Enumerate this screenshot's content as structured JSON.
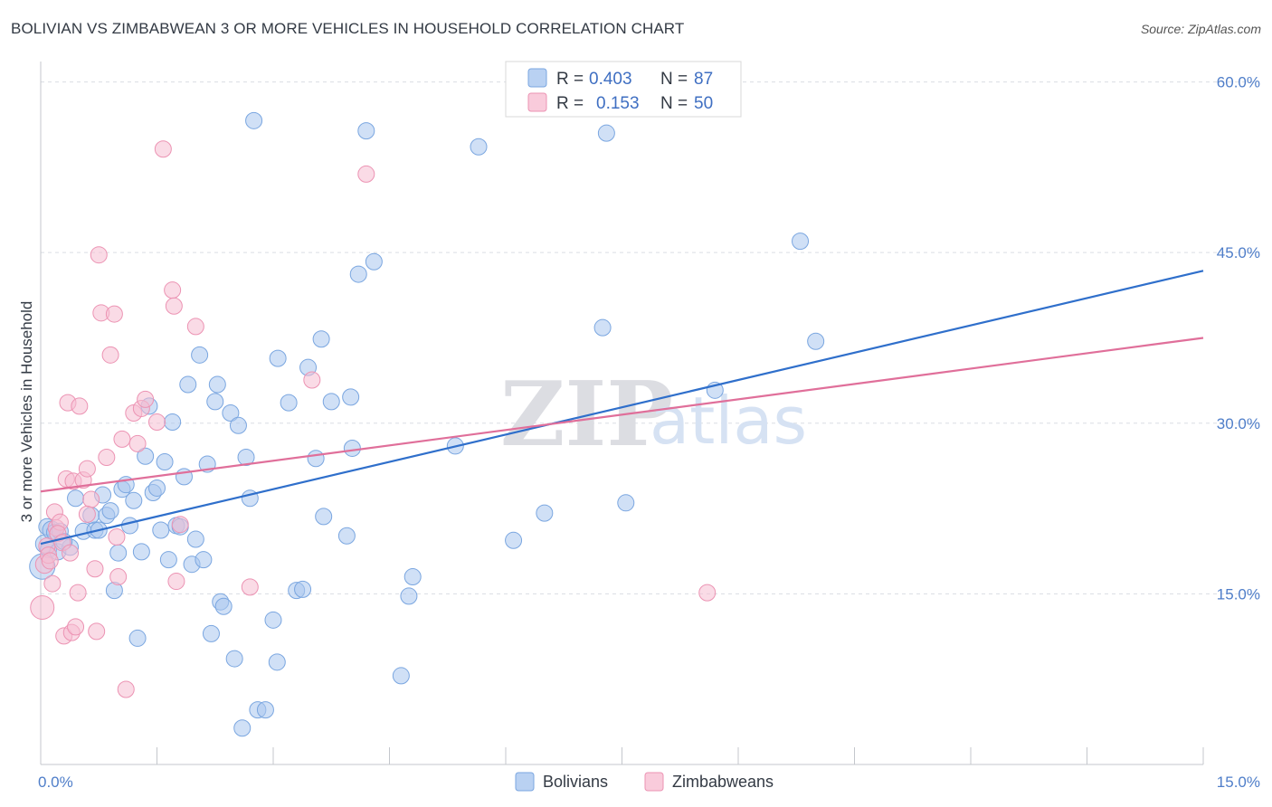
{
  "chart_data": {
    "type": "scatter",
    "title": "BOLIVIAN VS ZIMBABWEAN 3 OR MORE VEHICLES IN HOUSEHOLD CORRELATION CHART",
    "source": "Source: ZipAtlas.com",
    "xlabel": "",
    "ylabel": "3 or more Vehicles in Household",
    "xlim": [
      0,
      15
    ],
    "ylim": [
      0,
      61
    ],
    "x_tick_labels": [
      "0.0%",
      "15.0%"
    ],
    "y_ticks": [
      15,
      30,
      45,
      60
    ],
    "y_tick_labels": [
      "15.0%",
      "30.0%",
      "45.0%",
      "60.0%"
    ],
    "grid": true,
    "watermark": {
      "zip": "ZIP",
      "atlas": "atlas"
    },
    "legend_stats": [
      {
        "r_label": "R =",
        "r": "0.403",
        "n_label": "N =",
        "n": "87"
      },
      {
        "r_label": "R =",
        "r": "0.153",
        "n_label": "N =",
        "n": "50"
      }
    ],
    "series": [
      {
        "name": "Bolivians",
        "color": "#a9c7ee",
        "stroke": "#7aa6e0",
        "line_color": "#2f6fcb",
        "trend": [
          [
            0,
            19.4
          ],
          [
            15,
            43.4
          ]
        ],
        "points": [
          [
            0.02,
            17.4,
            14
          ],
          [
            0.05,
            19.4,
            10
          ],
          [
            0.08,
            20.9,
            9
          ],
          [
            0.1,
            18.9,
            9
          ],
          [
            0.14,
            20.6,
            10
          ],
          [
            0.18,
            20.4,
            9
          ],
          [
            0.22,
            18.7,
            9
          ],
          [
            0.25,
            20.5,
            9
          ],
          [
            0.38,
            19.1,
            9
          ],
          [
            0.45,
            23.4,
            9
          ],
          [
            0.55,
            20.5,
            9
          ],
          [
            0.65,
            21.9,
            9
          ],
          [
            0.7,
            20.6,
            9
          ],
          [
            0.75,
            20.6,
            9
          ],
          [
            0.8,
            23.7,
            9
          ],
          [
            0.85,
            21.9,
            9
          ],
          [
            0.9,
            22.3,
            9
          ],
          [
            0.95,
            15.3,
            9
          ],
          [
            1.0,
            18.6,
            9
          ],
          [
            1.05,
            24.2,
            9
          ],
          [
            1.1,
            24.6,
            9
          ],
          [
            1.15,
            21.0,
            9
          ],
          [
            1.2,
            23.2,
            9
          ],
          [
            1.25,
            11.1,
            9
          ],
          [
            1.3,
            18.7,
            9
          ],
          [
            1.35,
            27.1,
            9
          ],
          [
            1.4,
            31.5,
            9
          ],
          [
            1.45,
            23.9,
            9
          ],
          [
            1.5,
            24.3,
            9
          ],
          [
            1.55,
            20.6,
            9
          ],
          [
            1.6,
            26.6,
            9
          ],
          [
            1.65,
            18.0,
            9
          ],
          [
            1.7,
            30.1,
            9
          ],
          [
            1.75,
            21.0,
            9
          ],
          [
            1.8,
            20.9,
            9
          ],
          [
            1.85,
            25.3,
            9
          ],
          [
            1.9,
            33.4,
            9
          ],
          [
            1.95,
            17.6,
            9
          ],
          [
            2.0,
            19.8,
            9
          ],
          [
            2.05,
            36.0,
            9
          ],
          [
            2.1,
            18.0,
            9
          ],
          [
            2.15,
            26.4,
            9
          ],
          [
            2.2,
            11.5,
            9
          ],
          [
            2.25,
            31.9,
            9
          ],
          [
            2.28,
            33.4,
            9
          ],
          [
            2.32,
            14.3,
            9
          ],
          [
            2.36,
            13.9,
            9
          ],
          [
            2.45,
            30.9,
            9
          ],
          [
            2.5,
            9.3,
            9
          ],
          [
            2.55,
            29.8,
            9
          ],
          [
            2.6,
            3.2,
            9
          ],
          [
            2.65,
            27.0,
            9
          ],
          [
            2.7,
            23.4,
            9
          ],
          [
            2.75,
            56.6,
            9
          ],
          [
            2.8,
            4.8,
            9
          ],
          [
            2.9,
            4.8,
            9
          ],
          [
            3.0,
            12.7,
            9
          ],
          [
            3.05,
            9.0,
            9
          ],
          [
            3.06,
            35.7,
            9
          ],
          [
            3.2,
            31.8,
            9
          ],
          [
            3.3,
            15.3,
            9
          ],
          [
            3.38,
            15.4,
            9
          ],
          [
            3.45,
            34.9,
            9
          ],
          [
            3.55,
            26.9,
            9
          ],
          [
            3.62,
            37.4,
            9
          ],
          [
            3.65,
            21.8,
            9
          ],
          [
            3.75,
            31.9,
            9
          ],
          [
            3.95,
            20.1,
            9
          ],
          [
            4.0,
            32.3,
            9
          ],
          [
            4.02,
            27.8,
            9
          ],
          [
            4.1,
            43.1,
            9
          ],
          [
            4.2,
            55.7,
            9
          ],
          [
            4.3,
            44.2,
            9
          ],
          [
            4.65,
            7.8,
            9
          ],
          [
            4.75,
            14.8,
            9
          ],
          [
            4.8,
            16.5,
            9
          ],
          [
            5.35,
            28.0,
            9
          ],
          [
            5.65,
            54.3,
            9
          ],
          [
            6.1,
            19.7,
            9
          ],
          [
            6.5,
            22.1,
            9
          ],
          [
            7.25,
            38.4,
            9
          ],
          [
            7.3,
            55.5,
            9
          ],
          [
            7.55,
            23.0,
            9
          ],
          [
            8.7,
            32.9,
            9
          ],
          [
            9.8,
            46.0,
            9
          ],
          [
            10.0,
            37.2,
            9
          ],
          [
            0.3,
            19.6,
            9
          ]
        ]
      },
      {
        "name": "Zimbabweans",
        "color": "#f6bed1",
        "stroke": "#ec93b3",
        "line_color": "#e06f9a",
        "trend": [
          [
            0,
            24.0
          ],
          [
            15,
            37.5
          ]
        ],
        "points": [
          [
            0.02,
            13.8,
            13
          ],
          [
            0.05,
            17.6,
            10
          ],
          [
            0.08,
            19.2,
            9
          ],
          [
            0.1,
            18.4,
            9
          ],
          [
            0.15,
            15.9,
            9
          ],
          [
            0.18,
            22.2,
            9
          ],
          [
            0.2,
            20.8,
            9
          ],
          [
            0.25,
            21.3,
            9
          ],
          [
            0.3,
            11.3,
            9
          ],
          [
            0.33,
            25.1,
            9
          ],
          [
            0.35,
            31.8,
            9
          ],
          [
            0.4,
            11.6,
            9
          ],
          [
            0.42,
            24.9,
            9
          ],
          [
            0.45,
            12.1,
            9
          ],
          [
            0.48,
            15.1,
            9
          ],
          [
            0.5,
            31.5,
            9
          ],
          [
            0.55,
            25.0,
            9
          ],
          [
            0.6,
            26.0,
            9
          ],
          [
            0.65,
            23.3,
            9
          ],
          [
            0.72,
            11.7,
            9
          ],
          [
            0.75,
            44.8,
            9
          ],
          [
            0.78,
            39.7,
            9
          ],
          [
            0.85,
            27.0,
            9
          ],
          [
            0.9,
            36.0,
            9
          ],
          [
            0.95,
            39.6,
            9
          ],
          [
            0.98,
            20.0,
            9
          ],
          [
            1.0,
            16.5,
            9
          ],
          [
            1.05,
            28.6,
            9
          ],
          [
            1.1,
            6.6,
            9
          ],
          [
            1.2,
            30.9,
            9
          ],
          [
            1.25,
            28.2,
            9
          ],
          [
            1.3,
            31.3,
            9
          ],
          [
            1.35,
            32.1,
            9
          ],
          [
            1.5,
            30.1,
            9
          ],
          [
            1.58,
            54.1,
            9
          ],
          [
            1.7,
            41.7,
            9
          ],
          [
            1.72,
            40.3,
            9
          ],
          [
            1.75,
            16.1,
            9
          ],
          [
            1.8,
            21.1,
            9
          ],
          [
            2.0,
            38.5,
            9
          ],
          [
            2.7,
            15.6,
            9
          ],
          [
            3.5,
            33.8,
            9
          ],
          [
            4.2,
            51.9,
            9
          ],
          [
            8.6,
            15.1,
            9
          ],
          [
            0.12,
            17.9,
            9
          ],
          [
            0.22,
            20.3,
            9
          ],
          [
            0.28,
            19.5,
            9
          ],
          [
            0.38,
            18.6,
            9
          ],
          [
            0.6,
            22.0,
            9
          ],
          [
            0.7,
            17.2,
            9
          ]
        ]
      }
    ]
  }
}
